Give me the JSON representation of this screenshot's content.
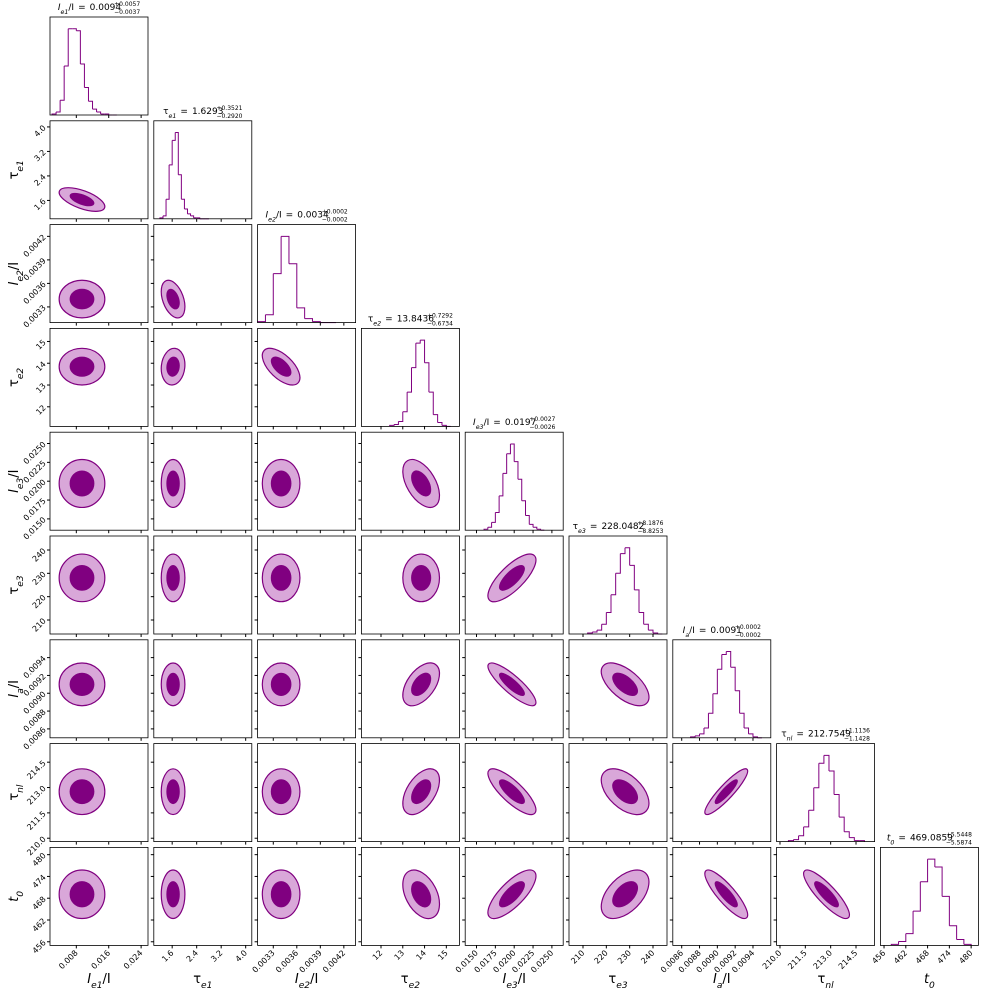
{
  "chart_data": {
    "type": "corner",
    "color": "#800080",
    "contour_fill": "#d9a7d9",
    "equals_sign": "=",
    "hist_ylim": [
      0,
      100
    ],
    "parameters": [
      {
        "symbol": {
          "main": "I",
          "sub": "e1",
          "tail": "/I"
        },
        "median": 0.0094,
        "plus": {
          "value": 0.0057,
          "label": "+0.0057"
        },
        "minus": {
          "value": -0.0037,
          "label": "−0.0037"
        },
        "lim": [
          0.0015,
          0.0257
        ],
        "ticks": [
          0.008,
          0.016,
          0.024
        ],
        "bins": [
          0.002,
          0.003,
          0.004,
          0.005,
          0.006,
          0.007,
          0.008,
          0.009,
          0.01,
          0.011,
          0.012,
          0.013,
          0.014,
          0.015,
          0.016,
          0.017,
          0.018
        ],
        "counts": [
          1,
          3,
          15,
          50,
          88,
          88,
          86,
          52,
          28,
          14,
          6,
          3,
          1,
          1,
          0,
          0
        ]
      },
      {
        "symbol": {
          "main": "τ",
          "sub": "e1"
        },
        "median": 1.6293,
        "plus": {
          "value": 0.3521,
          "label": "+0.3521"
        },
        "minus": {
          "value": -0.292,
          "label": "−0.2920"
        },
        "lim": [
          1.0,
          4.2
        ],
        "ticks": [
          1.6,
          2.4,
          3.2,
          {
            "value": 4,
            "label": "4.0"
          }
        ],
        "bins": [
          1.2,
          1.3,
          1.4,
          1.5,
          1.6,
          1.7,
          1.8,
          1.9,
          2.0,
          2.1,
          2.2,
          2.3,
          2.4,
          2.5,
          2.6,
          2.7,
          2.8
        ],
        "counts": [
          1,
          3,
          20,
          55,
          80,
          88,
          45,
          20,
          10,
          5,
          3,
          1,
          1,
          0,
          0,
          0
        ]
      },
      {
        "symbol": {
          "main": "I",
          "sub": "e2",
          "tail": "/I"
        },
        "median": 0.0034,
        "plus": {
          "value": 0.0002,
          "label": "+0.0002"
        },
        "minus": {
          "value": -0.0002,
          "label": "−0.0002"
        },
        "lim": [
          0.0031,
          0.00435
        ],
        "ticks": [
          0.0033,
          0.0036,
          0.0039,
          0.0042
        ],
        "bins": [
          0.0031,
          0.0032,
          0.0033,
          0.0034,
          0.0035,
          0.0036,
          0.0037,
          0.0038,
          0.0039,
          0.004,
          0.0041
        ],
        "counts": [
          1,
          8,
          50,
          88,
          60,
          15,
          4,
          1,
          0,
          0
        ]
      },
      {
        "symbol": {
          "main": "τ",
          "sub": "e2"
        },
        "median": 13.8436,
        "plus": {
          "value": 0.7292,
          "label": "+0.7292"
        },
        "minus": {
          "value": -0.6734,
          "label": "−0.6734"
        },
        "lim": [
          11.1,
          15.6
        ],
        "ticks": [
          12,
          13,
          14,
          15
        ],
        "bins": [
          12.4,
          12.6,
          12.8,
          13.0,
          13.2,
          13.4,
          13.6,
          13.8,
          14.0,
          14.2,
          14.4,
          14.6,
          14.8,
          15.0,
          15.2
        ],
        "counts": [
          1,
          2,
          5,
          15,
          35,
          60,
          85,
          88,
          65,
          35,
          12,
          4,
          1,
          0
        ]
      },
      {
        "symbol": {
          "main": "I",
          "sub": "e3",
          "tail": "/I"
        },
        "median": 0.0197,
        "plus": {
          "value": 0.0027,
          "label": "+0.0027"
        },
        "minus": {
          "value": -0.0026,
          "label": "−0.0026"
        },
        "lim": [
          0.0135,
          0.0265
        ],
        "ticks": [
          {
            "value": 0.015,
            "label": "0.0150"
          },
          0.0175,
          {
            "value": 0.02,
            "label": "0.0200"
          },
          0.0225,
          {
            "value": 0.025,
            "label": "0.0250"
          }
        ],
        "bins": [
          0.016,
          0.0165,
          0.017,
          0.0175,
          0.018,
          0.0185,
          0.019,
          0.0195,
          0.02,
          0.0205,
          0.021,
          0.0215,
          0.022,
          0.0225,
          0.023,
          0.0235,
          0.024
        ],
        "counts": [
          1,
          3,
          8,
          18,
          35,
          58,
          78,
          88,
          70,
          52,
          30,
          15,
          6,
          3,
          1,
          0
        ]
      },
      {
        "symbol": {
          "main": "τ",
          "sub": "e3"
        },
        "median": 228.0482,
        "plus": {
          "value": 8.1876,
          "label": "+8.1876"
        },
        "minus": {
          "value": -8.8253,
          "label": "−8.8253"
        },
        "lim": [
          204,
          246
        ],
        "ticks": [
          210,
          220,
          230,
          240
        ],
        "bins": [
          212,
          214,
          216,
          218,
          220,
          222,
          224,
          226,
          228,
          230,
          232,
          234,
          236,
          238,
          240,
          242,
          244
        ],
        "counts": [
          1,
          2,
          4,
          10,
          22,
          40,
          62,
          82,
          88,
          70,
          45,
          22,
          10,
          4,
          1,
          0
        ]
      },
      {
        "symbol": {
          "main": "I",
          "sub": "a",
          "tail": "/I"
        },
        "median": 0.0091,
        "plus": {
          "value": 0.0002,
          "label": "+0.0002"
        },
        "minus": {
          "value": -0.0002,
          "label": "−0.0002"
        },
        "lim": [
          0.0085,
          0.0096
        ],
        "ticks": [
          0.0086,
          0.0088,
          {
            "value": 0.009,
            "label": "0.0090"
          },
          0.0092,
          0.0094
        ],
        "bins": [
          0.0087,
          0.00875,
          0.0088,
          0.00885,
          0.0089,
          0.00895,
          0.009,
          0.00905,
          0.0091,
          0.00915,
          0.0092,
          0.00925,
          0.0093,
          0.00935,
          0.0094,
          0.00945,
          0.0095
        ],
        "counts": [
          1,
          2,
          4,
          10,
          25,
          45,
          70,
          85,
          88,
          72,
          48,
          25,
          10,
          4,
          1,
          0
        ]
      },
      {
        "symbol": {
          "main": "τ",
          "sub": "nl"
        },
        "median": 212.7549,
        "plus": {
          "value": 1.1136,
          "label": "+1.1136"
        },
        "minus": {
          "value": -1.1428,
          "label": "−1.1428"
        },
        "lim": [
          209.8,
          215.6
        ],
        "ticks": [
          {
            "value": 210,
            "label": "210.0"
          },
          211.5,
          {
            "value": 213,
            "label": "213.0"
          },
          214.5
        ],
        "bins": [
          210.5,
          210.8,
          211.1,
          211.4,
          211.7,
          212.0,
          212.3,
          212.6,
          212.9,
          213.2,
          213.5,
          213.8,
          214.1,
          214.4,
          214.7,
          215.0
        ],
        "counts": [
          1,
          2,
          6,
          15,
          32,
          55,
          80,
          88,
          72,
          48,
          25,
          10,
          4,
          1,
          1
        ]
      },
      {
        "symbol": {
          "main": "t",
          "sub": "0"
        },
        "median": 469.0859,
        "plus": {
          "value": 5.5448,
          "label": "+5.5448"
        },
        "minus": {
          "value": -5.5874,
          "label": "−5.5874"
        },
        "lim": [
          455,
          482
        ],
        "ticks": [
          456,
          462,
          468,
          474,
          480
        ],
        "bins": [
          458,
          460,
          462,
          464,
          466,
          468,
          470,
          472,
          474,
          476,
          478,
          480
        ],
        "counts": [
          1,
          4,
          12,
          35,
          65,
          88,
          80,
          50,
          20,
          6,
          1
        ]
      }
    ],
    "correlations": [
      [],
      [
        -0.6
      ],
      [
        0,
        -0.4
      ],
      [
        0,
        0.1,
        -0.6
      ],
      [
        0,
        0,
        0,
        -0.5
      ],
      [
        0,
        0,
        0,
        0,
        0.75
      ],
      [
        0,
        0,
        0,
        0.5,
        -0.85,
        -0.6
      ],
      [
        0,
        0,
        0,
        0.5,
        -0.8,
        -0.5,
        0.9
      ],
      [
        0,
        0,
        0,
        -0.4,
        0.75,
        0.5,
        -0.85,
        -0.85
      ]
    ]
  }
}
